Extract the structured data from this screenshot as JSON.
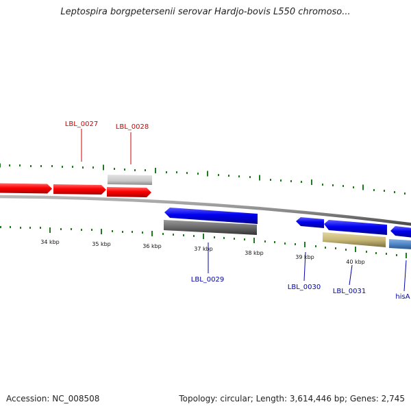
{
  "header": {
    "title": "Leptospira borgpetersenii serovar Hardjo-bovis L550 chromoso..."
  },
  "footer": {
    "accession": "Accession: NC_008508",
    "summary": "Topology: circular; Length: 3,614,446 bp; Genes: 2,745"
  },
  "colors": {
    "backbone": "#8c8c8c",
    "tick": "#1f7a1f",
    "forward_gene": "#ff0000",
    "reverse_gene": "#0000ff",
    "label_forward": "#cc0000",
    "label_reverse": "#0000aa",
    "gray_feature": "#c8c8c8",
    "dark_feature": "#6a6a6a",
    "khaki_feature": "#c8b878",
    "steelblue_feature": "#4f86c6"
  },
  "chart_data": {
    "type": "linear-genome-map",
    "tick_labels": [
      "34 kbp",
      "35 kbp",
      "36 kbp",
      "37 kbp",
      "38 kbp",
      "39 kbp",
      "40 kbp"
    ],
    "gene_labels": [
      {
        "name": "LBL_0027",
        "strand": "forward"
      },
      {
        "name": "LBL_0028",
        "strand": "forward"
      },
      {
        "name": "LBL_0029",
        "strand": "reverse"
      },
      {
        "name": "LBL_0030",
        "strand": "reverse"
      },
      {
        "name": "LBL_0031",
        "strand": "reverse"
      },
      {
        "name": "hisA",
        "strand": "reverse"
      }
    ]
  }
}
